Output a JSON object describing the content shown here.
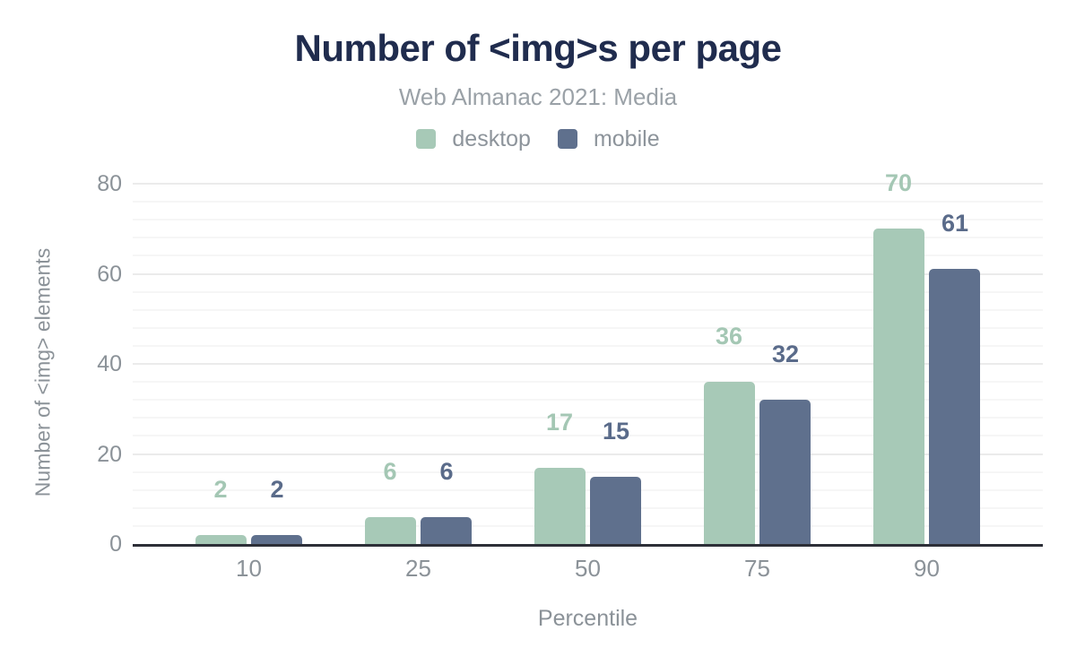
{
  "header": {
    "title": "Number of <img>s per page",
    "subtitle": "Web Almanac 2021: Media"
  },
  "axes": {
    "x_title": "Percentile",
    "y_title": "Number of <img> elements"
  },
  "colors": {
    "title": "#202c4e",
    "subtitle": "#9aa1a7",
    "axis_text": "#8b9298",
    "legend_text": "#8d949b",
    "baseline": "#2d2f38",
    "grid_major": "#ebebeb",
    "grid_minor": "#f6f6f6",
    "desktop": "#a7c9b7",
    "mobile": "#5f708d"
  },
  "chart_data": {
    "type": "bar",
    "title": "Number of <img>s per page",
    "subtitle": "Web Almanac 2021: Media",
    "categories": [
      "10",
      "25",
      "50",
      "75",
      "90"
    ],
    "series": [
      {
        "name": "desktop",
        "values": [
          2,
          6,
          17,
          36,
          70
        ],
        "color": "#a7c9b7",
        "label_color": "#a4c7b4"
      },
      {
        "name": "mobile",
        "values": [
          2,
          6,
          15,
          32,
          61
        ],
        "color": "#5f708d",
        "label_color": "#5a6b8a"
      }
    ],
    "xlabel": "Percentile",
    "ylabel": "Number of <img> elements",
    "ylim": [
      0,
      80
    ],
    "yticks": [
      0,
      20,
      40,
      60,
      80
    ],
    "minor_grid_step": 4,
    "grid": true,
    "legend_position": "top",
    "data_labels": true
  }
}
